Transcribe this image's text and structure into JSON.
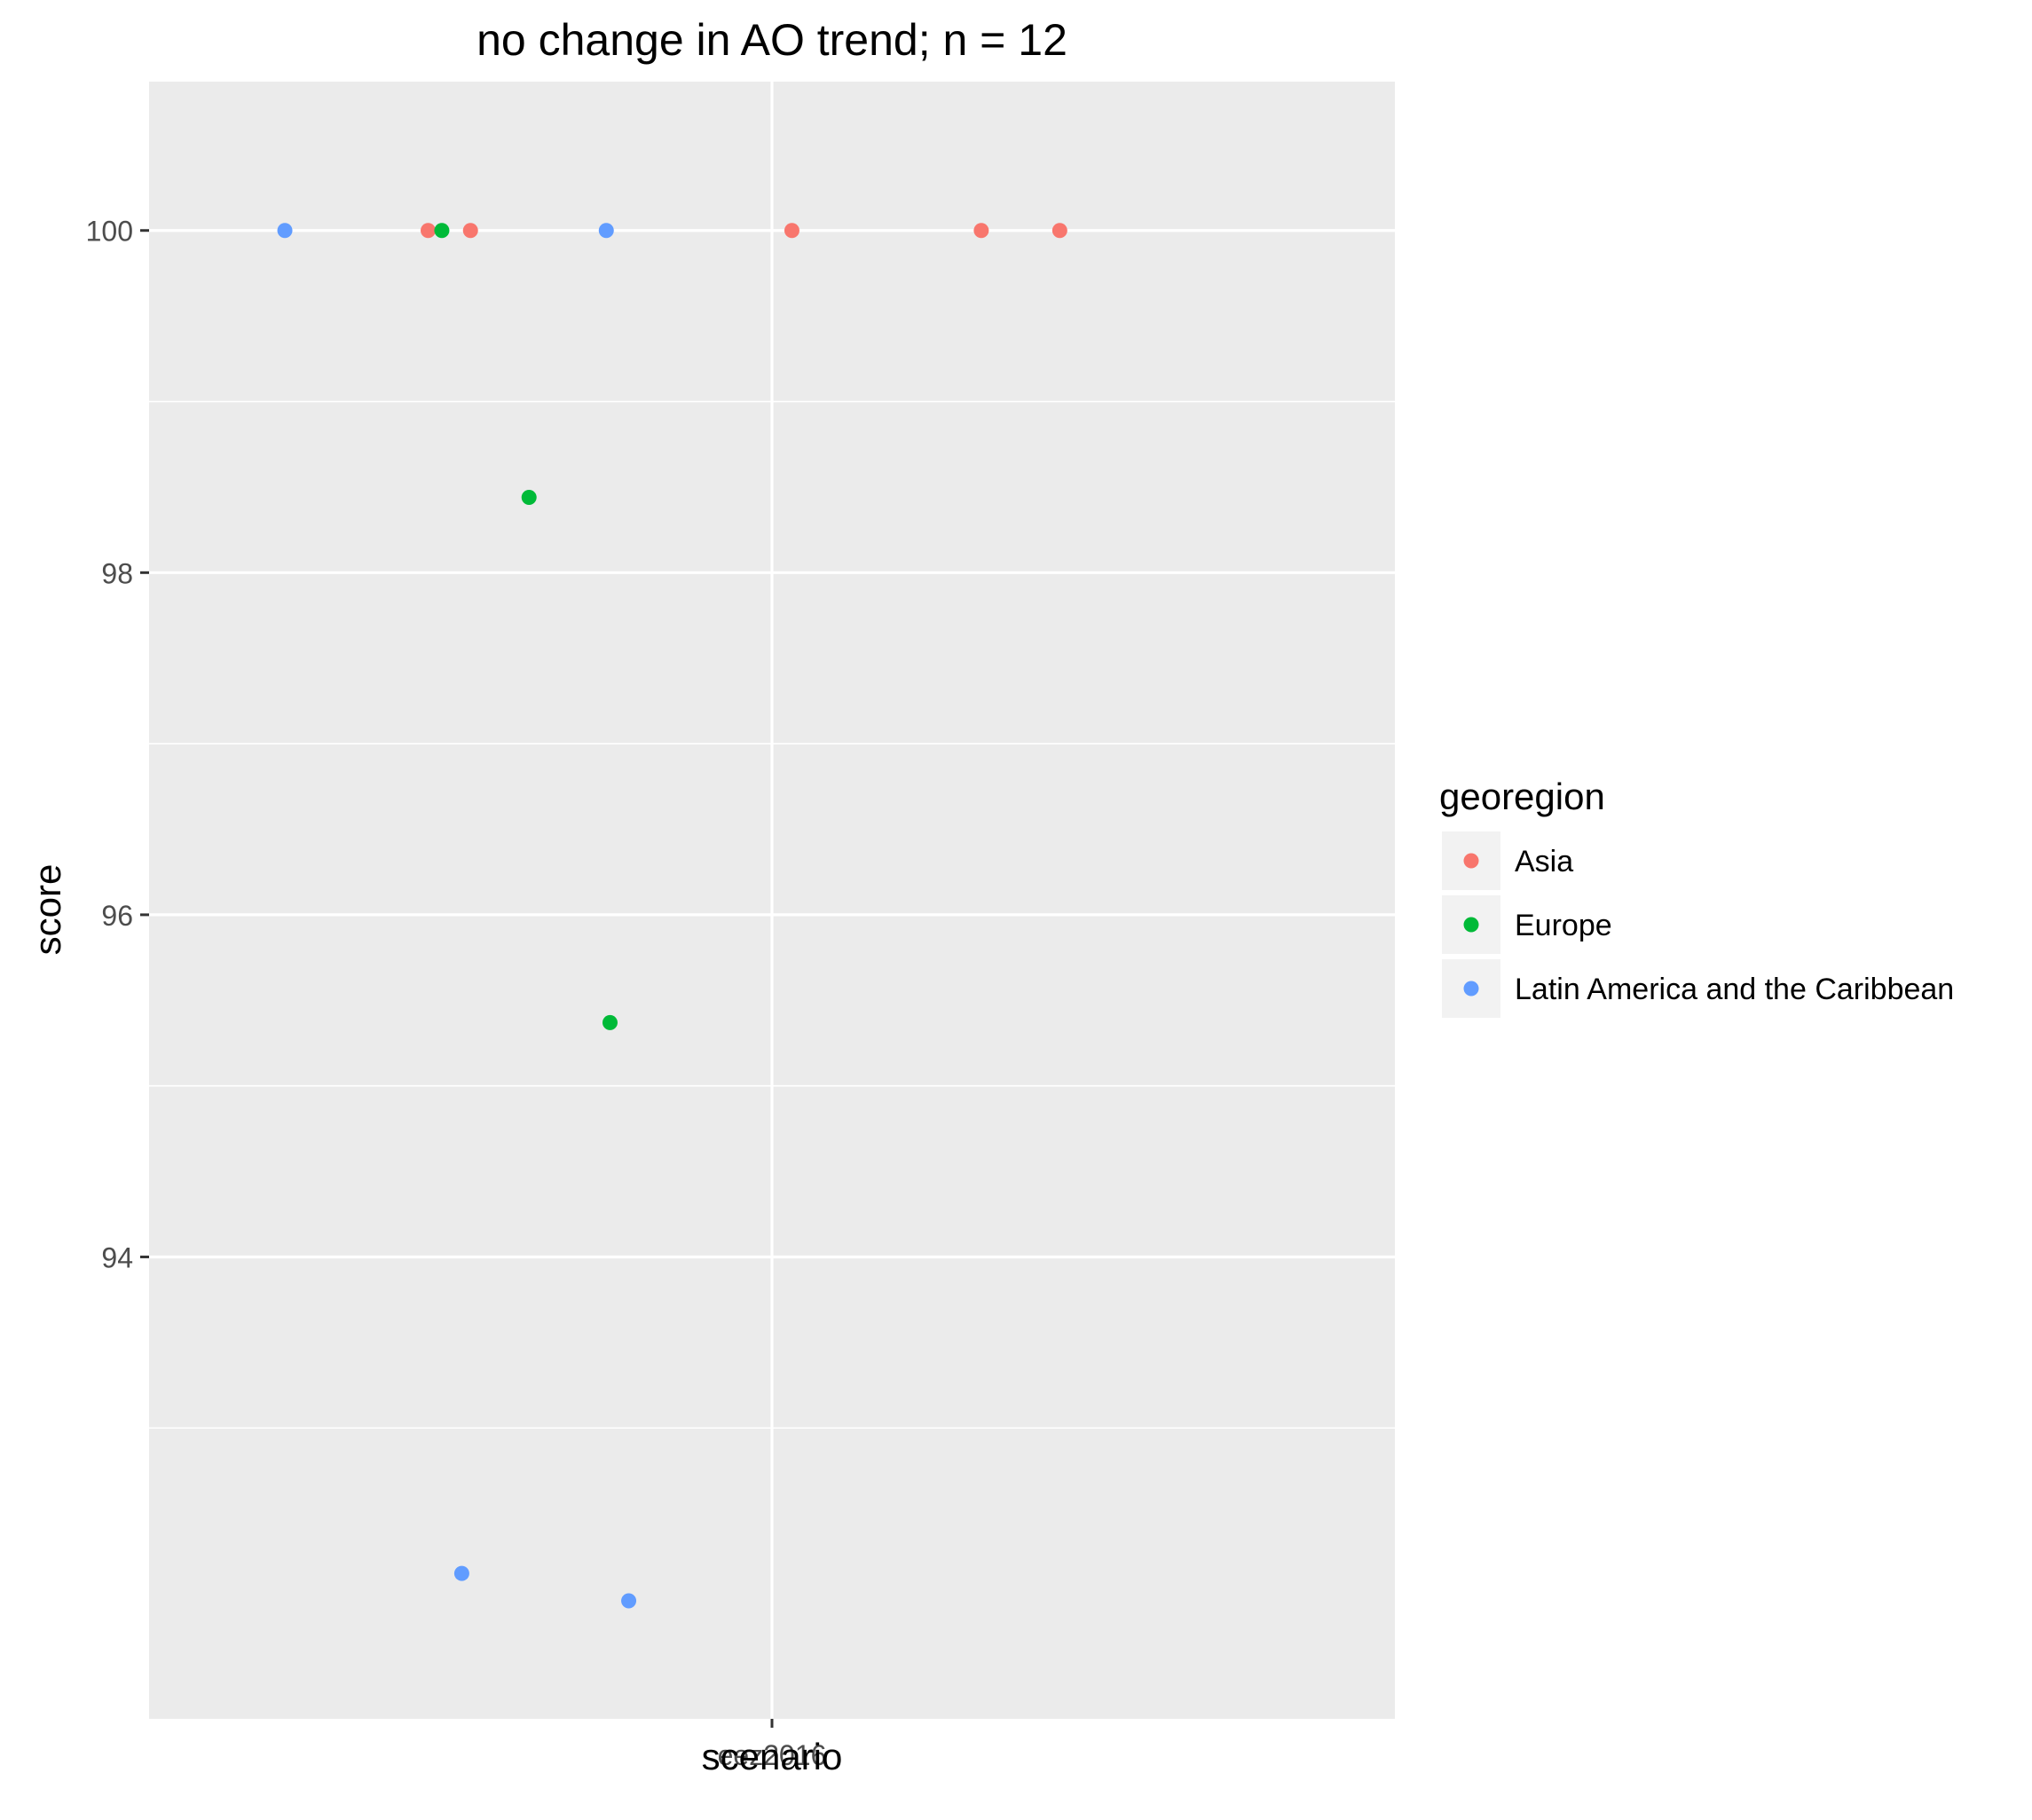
{
  "chart_data": {
    "type": "scatter",
    "title": "no change in AO trend; n = 12",
    "xlabel": "scenario",
    "ylabel": "score",
    "categories": [
      "eez2016"
    ],
    "x_jitter_range": [
      -0.5,
      0.5
    ],
    "ylim": [
      91.3,
      100.87
    ],
    "yticks": [
      94,
      96,
      98,
      100
    ],
    "grid": true,
    "legend": {
      "title": "georegion",
      "placement": "right",
      "entries": [
        {
          "name": "Asia",
          "color": "#F8766D"
        },
        {
          "name": "Europe",
          "color": "#00BA38"
        },
        {
          "name": "Latin America and the Caribbean",
          "color": "#619CFF"
        }
      ]
    },
    "series": [
      {
        "name": "Asia",
        "color": "#F8766D",
        "points": [
          {
            "x": -0.276,
            "y": 100
          },
          {
            "x": -0.242,
            "y": 100
          },
          {
            "x": 0.016,
            "y": 100
          },
          {
            "x": 0.168,
            "y": 100
          },
          {
            "x": 0.231,
            "y": 100
          }
        ]
      },
      {
        "name": "Europe",
        "color": "#00BA38",
        "points": [
          {
            "x": -0.265,
            "y": 100
          },
          {
            "x": -0.195,
            "y": 98.44
          },
          {
            "x": -0.13,
            "y": 95.37
          }
        ]
      },
      {
        "name": "Latin America and the Caribbean",
        "color": "#619CFF",
        "points": [
          {
            "x": -0.391,
            "y": 100
          },
          {
            "x": -0.133,
            "y": 100
          },
          {
            "x": -0.249,
            "y": 92.15
          },
          {
            "x": -0.115,
            "y": 91.99
          }
        ]
      }
    ]
  }
}
